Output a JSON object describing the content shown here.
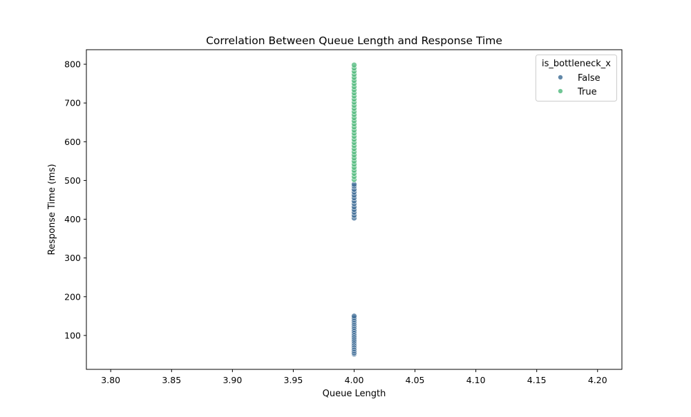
{
  "chart_data": {
    "type": "scatter",
    "title": "Correlation Between Queue Length and Response Time",
    "xlabel": "Queue Length",
    "ylabel": "Response Time (ms)",
    "xlim": [
      3.78,
      4.22
    ],
    "ylim": [
      12.5,
      837.5
    ],
    "x_ticks": [
      "3.80",
      "3.85",
      "3.90",
      "3.95",
      "4.00",
      "4.05",
      "4.10",
      "4.15",
      "4.20"
    ],
    "x_tick_values": [
      3.8,
      3.85,
      3.9,
      3.95,
      4.0,
      4.05,
      4.1,
      4.15,
      4.2
    ],
    "y_ticks": [
      "100",
      "200",
      "300",
      "400",
      "500",
      "600",
      "700",
      "800"
    ],
    "y_tick_values": [
      100,
      200,
      300,
      400,
      500,
      600,
      700,
      800
    ],
    "grid": false,
    "legend": {
      "title": "is_bottleneck_x",
      "placement": "top-right"
    },
    "series": [
      {
        "name": "False",
        "color": "#3b6a94",
        "points": [
          {
            "x": 4.0,
            "y": 52
          },
          {
            "x": 4.0,
            "y": 55
          },
          {
            "x": 4.0,
            "y": 60
          },
          {
            "x": 4.0,
            "y": 65
          },
          {
            "x": 4.0,
            "y": 70
          },
          {
            "x": 4.0,
            "y": 75
          },
          {
            "x": 4.0,
            "y": 80
          },
          {
            "x": 4.0,
            "y": 85
          },
          {
            "x": 4.0,
            "y": 90
          },
          {
            "x": 4.0,
            "y": 95
          },
          {
            "x": 4.0,
            "y": 100
          },
          {
            "x": 4.0,
            "y": 105
          },
          {
            "x": 4.0,
            "y": 110
          },
          {
            "x": 4.0,
            "y": 115
          },
          {
            "x": 4.0,
            "y": 120
          },
          {
            "x": 4.0,
            "y": 125
          },
          {
            "x": 4.0,
            "y": 130
          },
          {
            "x": 4.0,
            "y": 135
          },
          {
            "x": 4.0,
            "y": 140
          },
          {
            "x": 4.0,
            "y": 145
          },
          {
            "x": 4.0,
            "y": 150
          },
          {
            "x": 4.0,
            "y": 403
          },
          {
            "x": 4.0,
            "y": 410
          },
          {
            "x": 4.0,
            "y": 418
          },
          {
            "x": 4.0,
            "y": 425
          },
          {
            "x": 4.0,
            "y": 432
          },
          {
            "x": 4.0,
            "y": 440
          },
          {
            "x": 4.0,
            "y": 447
          },
          {
            "x": 4.0,
            "y": 455
          },
          {
            "x": 4.0,
            "y": 462
          },
          {
            "x": 4.0,
            "y": 470
          },
          {
            "x": 4.0,
            "y": 477
          },
          {
            "x": 4.0,
            "y": 485
          },
          {
            "x": 4.0,
            "y": 490
          }
        ]
      },
      {
        "name": "True",
        "color": "#4db87a",
        "points": [
          {
            "x": 4.0,
            "y": 502
          },
          {
            "x": 4.0,
            "y": 510
          },
          {
            "x": 4.0,
            "y": 518
          },
          {
            "x": 4.0,
            "y": 526
          },
          {
            "x": 4.0,
            "y": 534
          },
          {
            "x": 4.0,
            "y": 542
          },
          {
            "x": 4.0,
            "y": 550
          },
          {
            "x": 4.0,
            "y": 558
          },
          {
            "x": 4.0,
            "y": 566
          },
          {
            "x": 4.0,
            "y": 574
          },
          {
            "x": 4.0,
            "y": 582
          },
          {
            "x": 4.0,
            "y": 590
          },
          {
            "x": 4.0,
            "y": 598
          },
          {
            "x": 4.0,
            "y": 606
          },
          {
            "x": 4.0,
            "y": 614
          },
          {
            "x": 4.0,
            "y": 622
          },
          {
            "x": 4.0,
            "y": 630
          },
          {
            "x": 4.0,
            "y": 638
          },
          {
            "x": 4.0,
            "y": 646
          },
          {
            "x": 4.0,
            "y": 654
          },
          {
            "x": 4.0,
            "y": 662
          },
          {
            "x": 4.0,
            "y": 670
          },
          {
            "x": 4.0,
            "y": 678
          },
          {
            "x": 4.0,
            "y": 686
          },
          {
            "x": 4.0,
            "y": 694
          },
          {
            "x": 4.0,
            "y": 702
          },
          {
            "x": 4.0,
            "y": 710
          },
          {
            "x": 4.0,
            "y": 718
          },
          {
            "x": 4.0,
            "y": 726
          },
          {
            "x": 4.0,
            "y": 734
          },
          {
            "x": 4.0,
            "y": 742
          },
          {
            "x": 4.0,
            "y": 750
          },
          {
            "x": 4.0,
            "y": 758
          },
          {
            "x": 4.0,
            "y": 766
          },
          {
            "x": 4.0,
            "y": 774
          },
          {
            "x": 4.0,
            "y": 782
          },
          {
            "x": 4.0,
            "y": 790
          },
          {
            "x": 4.0,
            "y": 798
          }
        ]
      }
    ]
  }
}
